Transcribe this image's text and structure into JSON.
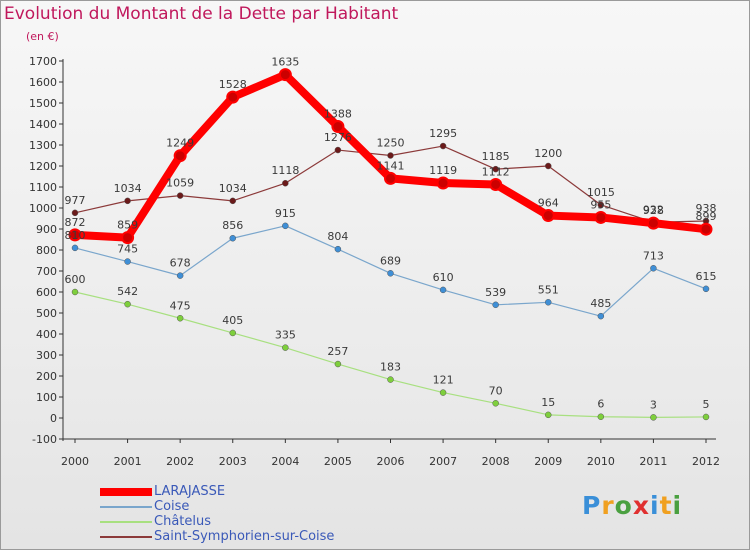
{
  "title": "Evolution du Montant de la Dette par Habitant",
  "subtitle": "(en €)",
  "chart_data": {
    "type": "line",
    "categories": [
      "2000",
      "2001",
      "2002",
      "2003",
      "2004",
      "2005",
      "2006",
      "2007",
      "2008",
      "2009",
      "2010",
      "2011",
      "2012"
    ],
    "ylim": [
      -100,
      1700
    ],
    "yticks": [
      -100,
      0,
      100,
      200,
      300,
      400,
      500,
      600,
      700,
      800,
      900,
      1000,
      1100,
      1200,
      1300,
      1400,
      1500,
      1600,
      1700
    ],
    "grid": false,
    "legend_position": "bottom-left",
    "series": [
      {
        "name": "LARAJASSE",
        "color": "#ff0000",
        "marker_color": "#cc0000",
        "values": [
          872,
          859,
          1249,
          1528,
          1635,
          1388,
          1141,
          1119,
          1112,
          964,
          955,
          928,
          899
        ]
      },
      {
        "name": "Coise",
        "color": "#7aa6cc",
        "marker_color": "#3f8fd6",
        "values": [
          810,
          745,
          678,
          856,
          915,
          804,
          689,
          610,
          539,
          551,
          485,
          713,
          615
        ]
      },
      {
        "name": "Châtelus",
        "color": "#a8e080",
        "marker_color": "#7ecf3c",
        "values": [
          600,
          542,
          475,
          405,
          335,
          257,
          183,
          121,
          70,
          15,
          6,
          3,
          5
        ]
      },
      {
        "name": "Saint-Symphorien-sur-Coise",
        "color": "#8c3a3a",
        "marker_color": "#6b1a1a",
        "values": [
          977,
          1034,
          1059,
          1034,
          1118,
          1276,
          1250,
          1295,
          1185,
          1200,
          1015,
          932,
          938
        ]
      }
    ]
  },
  "logo": {
    "letters": [
      {
        "ch": "P",
        "color": "#3a8fd8"
      },
      {
        "ch": "r",
        "color": "#f0a020"
      },
      {
        "ch": "o",
        "color": "#4aa040"
      },
      {
        "ch": "x",
        "color": "#e03030"
      },
      {
        "ch": "i",
        "color": "#3a8fd8"
      },
      {
        "ch": "t",
        "color": "#f0a020"
      },
      {
        "ch": "i",
        "color": "#4aa040"
      }
    ]
  }
}
